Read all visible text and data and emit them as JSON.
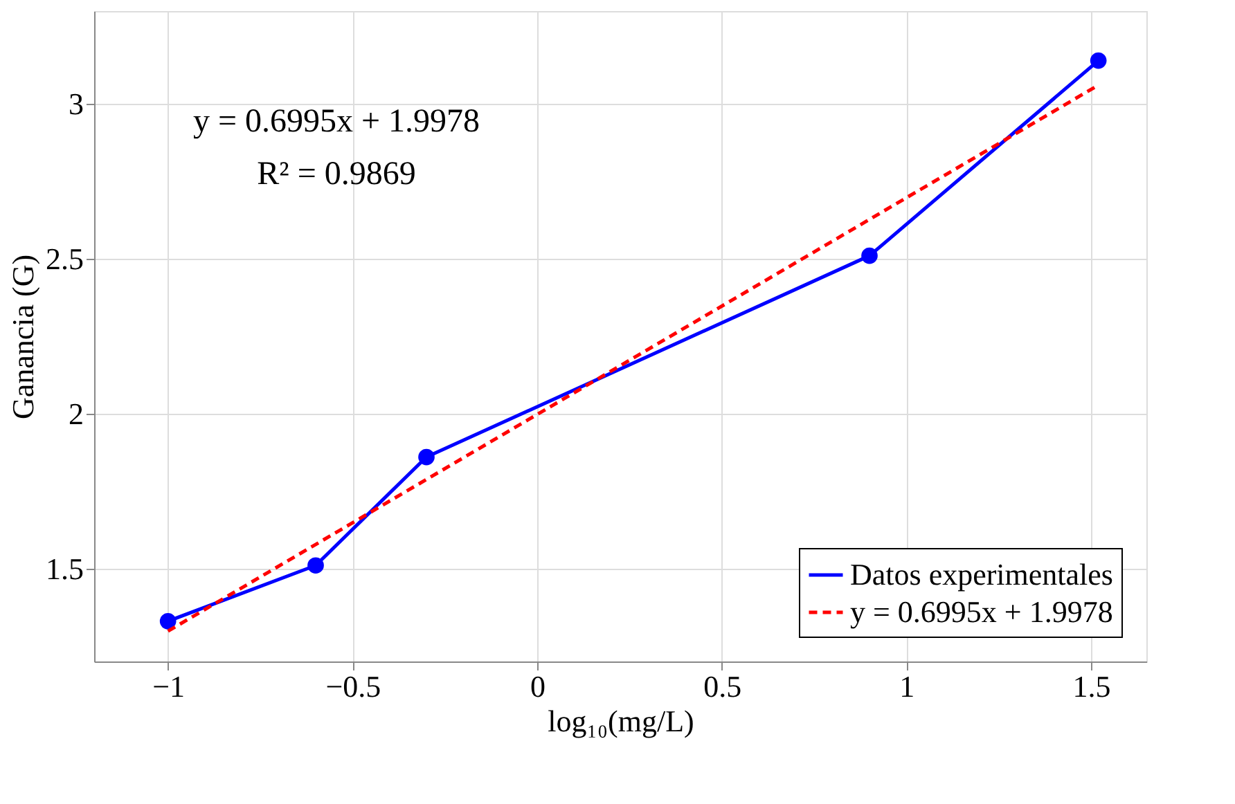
{
  "chart_data": {
    "type": "line",
    "xlabel": "log₁₀(mg/L)",
    "ylabel": "Ganancia (G)",
    "xlim": [
      -1.2,
      1.65
    ],
    "xticks": [
      -1,
      -0.5,
      0,
      0.5,
      1,
      1.5
    ],
    "ylim": [
      1.2,
      3.3
    ],
    "yticks": [
      1.5,
      2,
      2.5,
      3
    ],
    "grid": true,
    "legend": "bottom right",
    "annotations": [
      "y = 0.6995x + 1.9978",
      "R² = 0.9869"
    ],
    "series": [
      {
        "name": "Datos experimentales",
        "color": "#0000ff",
        "x": [
          -1,
          -0.6,
          -0.3,
          0.9,
          1.52
        ],
        "values": [
          1.33,
          1.51,
          1.86,
          2.51,
          3.14
        ],
        "marker": "circle",
        "line_style": "solid"
      },
      {
        "name": "y = 0.6995x + 1.9978",
        "color": "#ff0000",
        "x": [
          -1,
          1.52
        ],
        "values": [
          1.298,
          3.061
        ],
        "marker": "none",
        "line_style": "dashed"
      }
    ]
  }
}
